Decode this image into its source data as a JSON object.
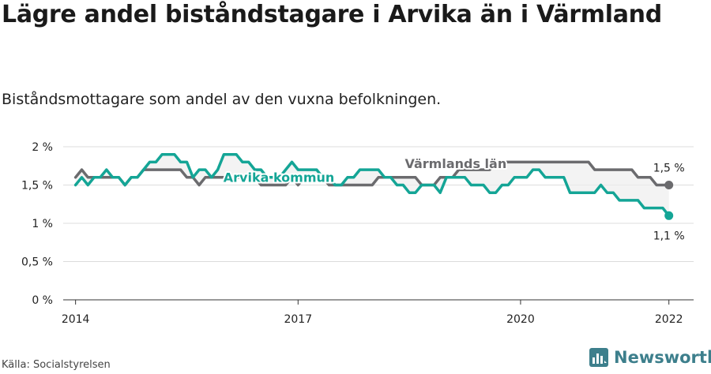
{
  "title": "Lägre andel biståndstagare i Arvika än i Värmland",
  "subtitle": "Biståndsmottagare som andel av den vuxna befolkningen.",
  "source": "Källa: Socialstyrelsen",
  "brand": {
    "name": "Newsworthy",
    "color": "#3d7f8c"
  },
  "chart_data": {
    "type": "line",
    "grid": true,
    "ylim": [
      0,
      2
    ],
    "y_ticks": [
      {
        "value": 0,
        "label": "0 %"
      },
      {
        "value": 0.5,
        "label": "0,5 %"
      },
      {
        "value": 1,
        "label": "1 %"
      },
      {
        "value": 1.5,
        "label": "1,5 %"
      },
      {
        "value": 2,
        "label": "2 %"
      }
    ],
    "x_ticks": [
      {
        "value": "2014-01",
        "label": "2014"
      },
      {
        "value": "2017-01",
        "label": "2017"
      },
      {
        "value": "2020-01",
        "label": "2020"
      },
      {
        "value": "2022-01",
        "label": "2022"
      }
    ],
    "xlim": [
      "2013-11",
      "2022-05"
    ],
    "series": [
      {
        "name": "Värmlands län",
        "color": "#6b6b6e",
        "end_label": "1,5 %",
        "x": [
          "2014-01",
          "2014-02",
          "2014-03",
          "2014-04",
          "2014-05",
          "2014-06",
          "2014-07",
          "2014-08",
          "2014-09",
          "2014-10",
          "2014-11",
          "2014-12",
          "2015-01",
          "2015-02",
          "2015-03",
          "2015-04",
          "2015-05",
          "2015-06",
          "2015-07",
          "2015-08",
          "2015-09",
          "2015-10",
          "2015-11",
          "2015-12",
          "2016-01",
          "2016-02",
          "2016-03",
          "2016-04",
          "2016-05",
          "2016-06",
          "2016-07",
          "2016-08",
          "2016-09",
          "2016-10",
          "2016-11",
          "2016-12",
          "2017-01",
          "2017-02",
          "2017-03",
          "2017-04",
          "2017-05",
          "2017-06",
          "2017-07",
          "2017-08",
          "2017-09",
          "2017-10",
          "2017-11",
          "2017-12",
          "2018-01",
          "2018-02",
          "2018-03",
          "2018-04",
          "2018-05",
          "2018-06",
          "2018-07",
          "2018-08",
          "2018-09",
          "2018-10",
          "2018-11",
          "2018-12",
          "2019-01",
          "2019-02",
          "2019-03",
          "2019-04",
          "2019-05",
          "2019-06",
          "2019-07",
          "2019-08",
          "2019-09",
          "2019-10",
          "2019-11",
          "2019-12",
          "2020-01",
          "2020-02",
          "2020-03",
          "2020-04",
          "2020-05",
          "2020-06",
          "2020-07",
          "2020-08",
          "2020-09",
          "2020-10",
          "2020-11",
          "2020-12",
          "2021-01",
          "2021-02",
          "2021-03",
          "2021-04",
          "2021-05",
          "2021-06",
          "2021-07",
          "2021-08",
          "2021-09",
          "2021-10",
          "2021-11",
          "2021-12",
          "2022-01"
        ],
        "y": [
          1.6,
          1.7,
          1.6,
          1.6,
          1.6,
          1.6,
          1.6,
          1.6,
          1.5,
          1.6,
          1.6,
          1.7,
          1.7,
          1.7,
          1.7,
          1.7,
          1.7,
          1.7,
          1.6,
          1.6,
          1.5,
          1.6,
          1.6,
          1.6,
          1.6,
          1.6,
          1.6,
          1.6,
          1.6,
          1.6,
          1.5,
          1.5,
          1.5,
          1.5,
          1.5,
          1.6,
          1.5,
          1.6,
          1.6,
          1.6,
          1.6,
          1.5,
          1.5,
          1.5,
          1.5,
          1.5,
          1.5,
          1.5,
          1.5,
          1.6,
          1.6,
          1.6,
          1.6,
          1.6,
          1.6,
          1.6,
          1.5,
          1.5,
          1.5,
          1.6,
          1.6,
          1.6,
          1.7,
          1.7,
          1.7,
          1.7,
          1.7,
          1.7,
          1.8,
          1.8,
          1.8,
          1.8,
          1.8,
          1.8,
          1.8,
          1.8,
          1.8,
          1.8,
          1.8,
          1.8,
          1.8,
          1.8,
          1.8,
          1.8,
          1.7,
          1.7,
          1.7,
          1.7,
          1.7,
          1.7,
          1.7,
          1.6,
          1.6,
          1.6,
          1.5,
          1.5,
          1.5
        ]
      },
      {
        "name": "Arvika kommun",
        "color": "#14a596",
        "end_label": "1,1 %",
        "x": [
          "2014-01",
          "2014-02",
          "2014-03",
          "2014-04",
          "2014-05",
          "2014-06",
          "2014-07",
          "2014-08",
          "2014-09",
          "2014-10",
          "2014-11",
          "2014-12",
          "2015-01",
          "2015-02",
          "2015-03",
          "2015-04",
          "2015-05",
          "2015-06",
          "2015-07",
          "2015-08",
          "2015-09",
          "2015-10",
          "2015-11",
          "2015-12",
          "2016-01",
          "2016-02",
          "2016-03",
          "2016-04",
          "2016-05",
          "2016-06",
          "2016-07",
          "2016-08",
          "2016-09",
          "2016-10",
          "2016-11",
          "2016-12",
          "2017-01",
          "2017-02",
          "2017-03",
          "2017-04",
          "2017-05",
          "2017-06",
          "2017-07",
          "2017-08",
          "2017-09",
          "2017-10",
          "2017-11",
          "2017-12",
          "2018-01",
          "2018-02",
          "2018-03",
          "2018-04",
          "2018-05",
          "2018-06",
          "2018-07",
          "2018-08",
          "2018-09",
          "2018-10",
          "2018-11",
          "2018-12",
          "2019-01",
          "2019-02",
          "2019-03",
          "2019-04",
          "2019-05",
          "2019-06",
          "2019-07",
          "2019-08",
          "2019-09",
          "2019-10",
          "2019-11",
          "2019-12",
          "2020-01",
          "2020-02",
          "2020-03",
          "2020-04",
          "2020-05",
          "2020-06",
          "2020-07",
          "2020-08",
          "2020-09",
          "2020-10",
          "2020-11",
          "2020-12",
          "2021-01",
          "2021-02",
          "2021-03",
          "2021-04",
          "2021-05",
          "2021-06",
          "2021-07",
          "2021-08",
          "2021-09",
          "2021-10",
          "2021-11",
          "2021-12",
          "2022-01"
        ],
        "y": [
          1.5,
          1.6,
          1.5,
          1.6,
          1.6,
          1.7,
          1.6,
          1.6,
          1.5,
          1.6,
          1.6,
          1.7,
          1.8,
          1.8,
          1.9,
          1.9,
          1.9,
          1.8,
          1.8,
          1.6,
          1.7,
          1.7,
          1.6,
          1.7,
          1.9,
          1.9,
          1.9,
          1.8,
          1.8,
          1.7,
          1.7,
          1.6,
          1.6,
          1.6,
          1.7,
          1.8,
          1.7,
          1.7,
          1.7,
          1.7,
          1.6,
          1.6,
          1.5,
          1.5,
          1.6,
          1.6,
          1.7,
          1.7,
          1.7,
          1.7,
          1.6,
          1.6,
          1.5,
          1.5,
          1.4,
          1.4,
          1.5,
          1.5,
          1.5,
          1.4,
          1.6,
          1.6,
          1.6,
          1.6,
          1.5,
          1.5,
          1.5,
          1.4,
          1.4,
          1.5,
          1.5,
          1.6,
          1.6,
          1.6,
          1.7,
          1.7,
          1.6,
          1.6,
          1.6,
          1.6,
          1.4,
          1.4,
          1.4,
          1.4,
          1.4,
          1.5,
          1.4,
          1.4,
          1.3,
          1.3,
          1.3,
          1.3,
          1.2,
          1.2,
          1.2,
          1.2,
          1.1
        ]
      }
    ]
  }
}
